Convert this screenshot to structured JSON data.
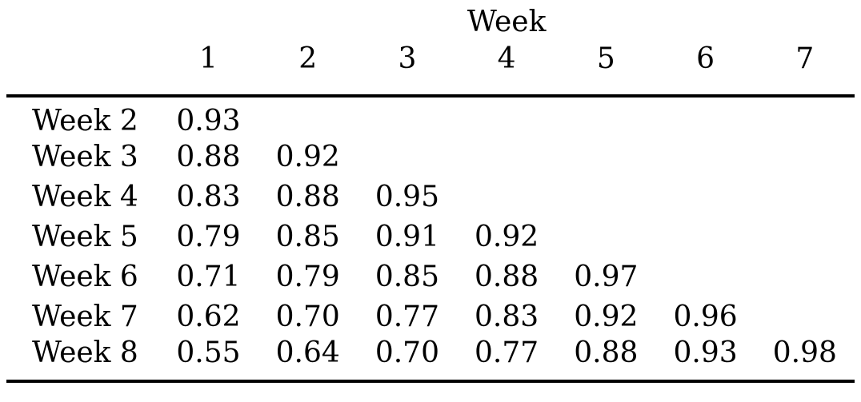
{
  "table": {
    "group_header": "Week",
    "columns": [
      "1",
      "2",
      "3",
      "4",
      "5",
      "6",
      "7"
    ],
    "rows": [
      {
        "label": "Week 2",
        "values": [
          "0.93",
          "",
          "",
          "",
          "",
          "",
          ""
        ]
      },
      {
        "label": "Week 3",
        "values": [
          "0.88",
          "0.92",
          "",
          "",
          "",
          "",
          ""
        ]
      },
      {
        "label": "Week 4",
        "values": [
          "0.83",
          "0.88",
          "0.95",
          "",
          "",
          "",
          ""
        ]
      },
      {
        "label": "Week 5",
        "values": [
          "0.79",
          "0.85",
          "0.91",
          "0.92",
          "",
          "",
          ""
        ]
      },
      {
        "label": "Week 6",
        "values": [
          "0.71",
          "0.79",
          "0.85",
          "0.88",
          "0.97",
          "",
          ""
        ]
      },
      {
        "label": "Week 7",
        "values": [
          "0.62",
          "0.70",
          "0.77",
          "0.83",
          "0.92",
          "0.96",
          ""
        ]
      },
      {
        "label": "Week 8",
        "values": [
          "0.55",
          "0.64",
          "0.70",
          "0.77",
          "0.88",
          "0.93",
          "0.98"
        ]
      }
    ]
  }
}
